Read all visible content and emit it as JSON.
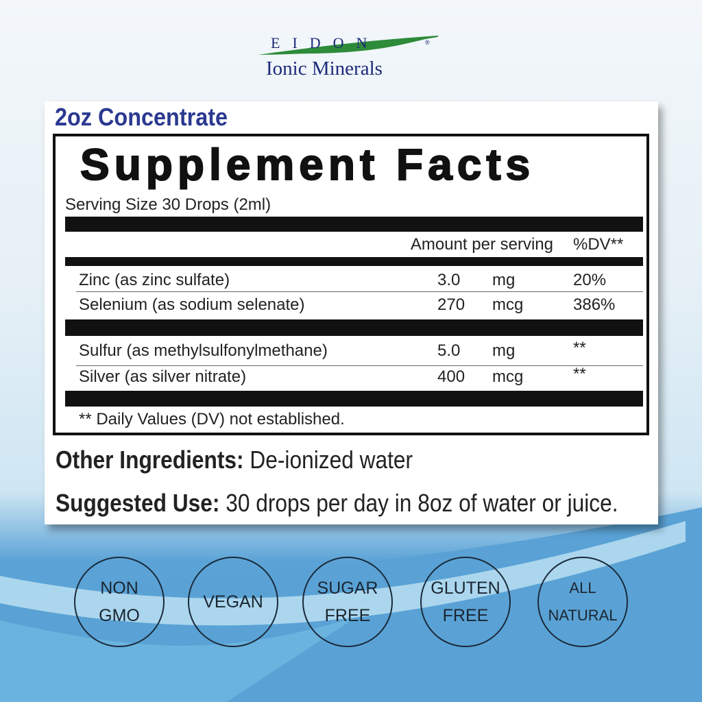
{
  "brand": {
    "logo_text": "EIDON",
    "registered": "®",
    "subtitle": "Ionic Minerals",
    "logo_color": "#1d2a7a",
    "leaf_color": "#2e8b3a"
  },
  "label": {
    "product_size": "2oz Concentrate",
    "title": "Supplement Facts",
    "serving_size": "Serving Size 30 Drops (2ml)",
    "header": {
      "amount": "Amount per serving",
      "dv": "%DV**"
    },
    "rows": [
      {
        "name": "Zinc (as zinc sulfate)",
        "amount": "3.0",
        "unit": "mg",
        "dv": "20%"
      },
      {
        "name": "Selenium (as sodium selenate)",
        "amount": "270",
        "unit": "mcg",
        "dv": "386%"
      },
      {
        "name": "Sulfur (as methylsulfonylmethane)",
        "amount": "5.0",
        "unit": "mg",
        "dv": "**"
      },
      {
        "name": "Silver (as silver nitrate)",
        "amount": "400",
        "unit": "mcg",
        "dv": "**"
      }
    ],
    "footnote": "** Daily Values (DV) not established.",
    "other_label": "Other Ingredients:",
    "other_value": " De-ionized water",
    "use_label": "Suggested Use:",
    "use_value": " 30 drops per day in 8oz of water or juice."
  },
  "badges": [
    {
      "line1": "NON",
      "line2": "GMO"
    },
    {
      "line1": "VEGAN",
      "line2": ""
    },
    {
      "line1": "SUGAR",
      "line2": "FREE"
    },
    {
      "line1": "GLUTEN",
      "line2": "FREE"
    },
    {
      "line1": "ALL",
      "line2": "NATURAL"
    }
  ]
}
